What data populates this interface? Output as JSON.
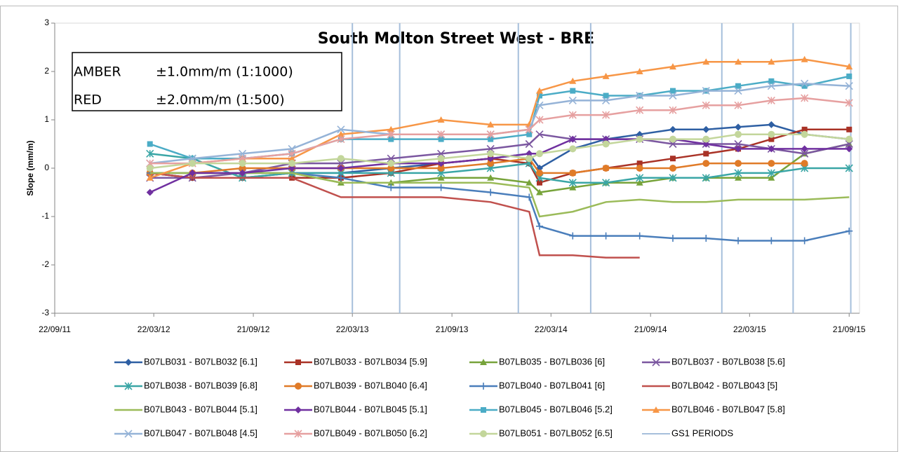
{
  "chart_data": {
    "type": "line",
    "title": "South Molton Street West - BRE",
    "y_label": "Slope (mm/m)",
    "annotations": [
      {
        "text": "AMBER",
        "color": "#f5a623"
      },
      {
        "text": "±1.0mm/m (1:1000)",
        "color": "#f5a623"
      },
      {
        "text": "RED",
        "color": "#ff0000"
      },
      {
        "text": "±2.0mm/m (1:500)",
        "color": "#ff0000"
      }
    ],
    "ylim": [
      -3,
      3
    ],
    "yticks": [
      -3,
      -2,
      -1,
      0,
      1,
      2,
      3
    ],
    "xlim": [
      "22/09/11",
      "10/10/15"
    ],
    "xticks": [
      "22/09/11",
      "22/03/12",
      "21/09/12",
      "22/03/13",
      "21/09/13",
      "22/03/14",
      "21/09/14",
      "22/03/15",
      "21/09/15"
    ],
    "x": [
      "15/03/12",
      "01/06/12",
      "01/09/12",
      "01/12/12",
      "01/03/13",
      "01/06/13",
      "01/09/13",
      "01/12/13",
      "10/02/14",
      "01/03/14",
      "01/05/14",
      "01/07/14",
      "01/09/14",
      "01/11/14",
      "01/01/15",
      "01/03/15",
      "01/05/15",
      "01/07/15",
      "21/09/15"
    ],
    "series": [
      {
        "name": "B07LB031 - B07LB032 [6.1]",
        "color": "#2e5fa3",
        "marker": "diamond",
        "values": [
          -0.1,
          -0.2,
          -0.2,
          -0.1,
          -0.1,
          0.0,
          0.1,
          0.2,
          0.3,
          0.0,
          0.4,
          0.6,
          0.7,
          0.8,
          0.8,
          0.85,
          0.9,
          0.7,
          0.6
        ]
      },
      {
        "name": "B07LB033 - B07LB034 [5.9]",
        "color": "#a93226",
        "marker": "square",
        "values": [
          -0.1,
          -0.2,
          -0.2,
          -0.2,
          -0.2,
          -0.1,
          0.1,
          0.2,
          0.1,
          -0.3,
          -0.1,
          0.0,
          0.1,
          0.2,
          0.3,
          0.4,
          0.6,
          0.8,
          0.8
        ]
      },
      {
        "name": "B07LB035 - B07LB036 [6]",
        "color": "#77a33a",
        "marker": "triangle",
        "values": [
          -0.1,
          -0.1,
          -0.1,
          -0.1,
          -0.3,
          -0.3,
          -0.2,
          -0.2,
          -0.3,
          -0.5,
          -0.4,
          -0.3,
          -0.3,
          -0.2,
          -0.2,
          -0.2,
          -0.2,
          0.3,
          0.5
        ]
      },
      {
        "name": "B07LB037 - B07LB038 [5.6]",
        "color": "#7b57a0",
        "marker": "x",
        "values": [
          -0.2,
          -0.2,
          -0.1,
          0.1,
          0.1,
          0.2,
          0.3,
          0.4,
          0.5,
          0.7,
          0.6,
          0.6,
          0.6,
          0.5,
          0.5,
          0.5,
          0.4,
          0.3,
          0.5
        ]
      },
      {
        "name": "B07LB038 - B07LB039 [6.8]",
        "color": "#3aa6a6",
        "marker": "star",
        "values": [
          0.3,
          0.2,
          -0.2,
          -0.1,
          -0.1,
          -0.1,
          -0.1,
          0.0,
          0.1,
          -0.2,
          -0.3,
          -0.3,
          -0.2,
          -0.2,
          -0.2,
          -0.1,
          -0.1,
          0.0,
          0.0
        ]
      },
      {
        "name": "B07LB039 - B07LB040 [6.4]",
        "color": "#e07b28",
        "marker": "circle",
        "values": [
          -0.1,
          -0.1,
          0.0,
          0.0,
          0.0,
          0.0,
          0.0,
          0.1,
          0.2,
          -0.1,
          -0.1,
          0.0,
          0.0,
          0.0,
          0.1,
          0.1,
          0.1,
          0.1,
          null
        ]
      },
      {
        "name": "B07LB040 - B07LB041 [6]",
        "color": "#4a7ebb",
        "marker": "plus",
        "values": [
          -0.1,
          -0.1,
          -0.1,
          -0.1,
          -0.2,
          -0.4,
          -0.4,
          -0.5,
          -0.6,
          -1.2,
          -1.4,
          -1.4,
          -1.4,
          -1.45,
          -1.45,
          -1.5,
          -1.5,
          -1.5,
          -1.3
        ]
      },
      {
        "name": "B07LB042 - B07LB043 [5]",
        "color": "#c0504d",
        "marker": "none",
        "values": [
          -0.1,
          -0.2,
          -0.2,
          -0.2,
          -0.6,
          -0.6,
          -0.6,
          -0.7,
          -0.9,
          -1.8,
          -1.8,
          -1.85,
          -1.85,
          null,
          null,
          null,
          null,
          null,
          null
        ]
      },
      {
        "name": "B07LB043 - B07LB044 [5.1]",
        "color": "#9bbb59",
        "marker": "none",
        "values": [
          -0.1,
          -0.1,
          -0.1,
          -0.1,
          -0.3,
          -0.3,
          -0.3,
          -0.3,
          -0.4,
          -1.0,
          -0.9,
          -0.7,
          -0.65,
          -0.7,
          -0.7,
          -0.65,
          -0.65,
          -0.65,
          -0.6
        ]
      },
      {
        "name": "B07LB044 - B07LB045 [5.1]",
        "color": "#7030a0",
        "marker": "diamond",
        "values": [
          -0.5,
          -0.1,
          -0.1,
          0.0,
          0.0,
          0.1,
          0.1,
          0.2,
          0.3,
          0.3,
          0.6,
          0.6,
          0.6,
          0.6,
          0.5,
          0.4,
          0.4,
          0.4,
          0.4
        ]
      },
      {
        "name": "B07LB045 - B07LB046 [5.2]",
        "color": "#4bacc6",
        "marker": "square",
        "values": [
          0.5,
          0.2,
          0.2,
          0.3,
          0.6,
          0.6,
          0.6,
          0.6,
          0.7,
          1.5,
          1.6,
          1.5,
          1.5,
          1.6,
          1.6,
          1.7,
          1.8,
          1.7,
          1.9
        ]
      },
      {
        "name": "B07LB046 - B07LB047 [5.8]",
        "color": "#f79646",
        "marker": "triangle",
        "values": [
          -0.2,
          0.1,
          0.2,
          0.2,
          0.7,
          0.8,
          1.0,
          0.9,
          0.9,
          1.6,
          1.8,
          1.9,
          2.0,
          2.1,
          2.2,
          2.2,
          2.2,
          2.25,
          2.1
        ]
      },
      {
        "name": "B07LB047 - B07LB048 [4.5]",
        "color": "#95b3d7",
        "marker": "x",
        "values": [
          0.1,
          0.2,
          0.3,
          0.4,
          0.8,
          0.7,
          0.7,
          0.7,
          0.8,
          1.3,
          1.4,
          1.4,
          1.5,
          1.5,
          1.6,
          1.6,
          1.7,
          1.75,
          1.7
        ]
      },
      {
        "name": "B07LB049 - B07LB050 [6.2]",
        "color": "#e6a0a0",
        "marker": "star",
        "values": [
          0.1,
          0.1,
          0.2,
          0.3,
          0.6,
          0.7,
          0.7,
          0.7,
          0.8,
          1.0,
          1.1,
          1.1,
          1.2,
          1.2,
          1.3,
          1.3,
          1.4,
          1.45,
          1.35
        ]
      },
      {
        "name": "B07LB051 - B07LB052 [6.5]",
        "color": "#c3d69b",
        "marker": "circle",
        "values": [
          0.0,
          0.1,
          0.1,
          0.1,
          0.2,
          0.1,
          0.2,
          0.3,
          0.2,
          0.3,
          0.4,
          0.5,
          0.6,
          0.6,
          0.6,
          0.7,
          0.7,
          0.7,
          0.6
        ]
      },
      {
        "name": "GS1 PERIODS",
        "color": "#a6bfdb",
        "marker": "vline",
        "x": [
          "22/03/13",
          "17/06/13",
          "21/01/14",
          "03/06/14",
          "30/01/15",
          "10/06/15",
          "24/09/15"
        ]
      }
    ]
  }
}
